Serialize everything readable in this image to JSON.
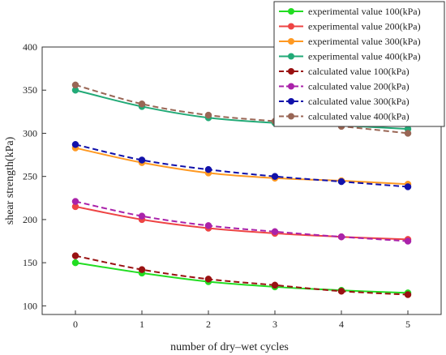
{
  "chart_data": {
    "type": "line",
    "title": "",
    "xlabel": "number of dry–wet cycles",
    "ylabel": "shear strength(kPa)",
    "x": [
      0,
      1,
      2,
      3,
      4,
      5
    ],
    "xlim": [
      -0.5,
      5.5
    ],
    "ylim": [
      90,
      400
    ],
    "xticks": [
      "0",
      "1",
      "2",
      "3",
      "4",
      "5"
    ],
    "yticks": [
      "100",
      "150",
      "200",
      "250",
      "300",
      "350",
      "400"
    ],
    "grid": false,
    "legend_position": "top-right",
    "series": [
      {
        "name": "experimental value 100(kPa)",
        "color": "#22dd22",
        "style": "solid",
        "values": [
          150,
          138,
          128,
          122,
          118,
          115
        ]
      },
      {
        "name": "experimental value 200(kPa)",
        "color": "#ee4444",
        "style": "solid",
        "values": [
          215,
          200,
          190,
          184,
          180,
          177
        ]
      },
      {
        "name": "experimental value 300(kPa)",
        "color": "#ff9922",
        "style": "solid",
        "values": [
          283,
          266,
          254,
          248,
          245,
          241
        ]
      },
      {
        "name": "experimental value 400(kPa)",
        "color": "#22aa77",
        "style": "solid",
        "values": [
          350,
          331,
          318,
          312,
          309,
          305
        ]
      },
      {
        "name": "calculated value 100(kPa)",
        "color": "#991111",
        "style": "dashed",
        "values": [
          158,
          142,
          131,
          124,
          117,
          113
        ]
      },
      {
        "name": "calculated value 200(kPa)",
        "color": "#aa22aa",
        "style": "dashed",
        "values": [
          221,
          204,
          193,
          186,
          180,
          175
        ]
      },
      {
        "name": "calculated value 300(kPa)",
        "color": "#1111aa",
        "style": "dashed",
        "values": [
          287,
          269,
          258,
          250,
          244,
          238
        ]
      },
      {
        "name": "calculated value 400(kPa)",
        "color": "#996655",
        "style": "dashed",
        "values": [
          356,
          334,
          321,
          314,
          308,
          300
        ]
      }
    ]
  }
}
